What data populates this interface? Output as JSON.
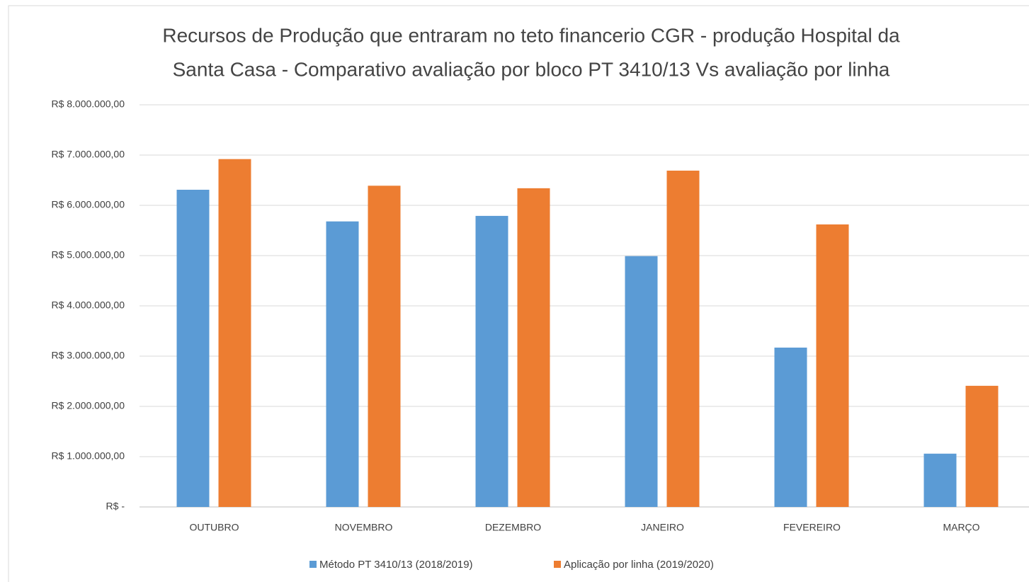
{
  "chart_data": {
    "type": "bar",
    "title": [
      "Recursos de Produção que entraram no teto financerio CGR - produção Hospital da",
      "Santa Casa - Comparativo avaliação por bloco PT 3410/13 Vs avaliação por linha"
    ],
    "categories": [
      "OUTUBRO",
      "NOVEMBRO",
      "DEZEMBRO",
      "JANEIRO",
      "FEVEREIRO",
      "MARÇO"
    ],
    "series": [
      {
        "name": "Método PT 3410/13 (2018/2019)",
        "color": "#5b9bd5",
        "values": [
          6310000,
          5680000,
          5790000,
          4990000,
          3170000,
          1060000
        ]
      },
      {
        "name": "Aplicação por linha (2019/2020)",
        "color": "#ed7d31",
        "values": [
          6920000,
          6390000,
          6340000,
          6690000,
          5620000,
          2410000
        ]
      }
    ],
    "ylim": [
      0,
      8000000
    ],
    "yticks": [
      {
        "value": 0,
        "label": "R$ -"
      },
      {
        "value": 1000000,
        "label": "R$ 1.000.000,00"
      },
      {
        "value": 2000000,
        "label": "R$ 2.000.000,00"
      },
      {
        "value": 3000000,
        "label": "R$ 3.000.000,00"
      },
      {
        "value": 4000000,
        "label": "R$ 4.000.000,00"
      },
      {
        "value": 5000000,
        "label": "R$ 5.000.000,00"
      },
      {
        "value": 6000000,
        "label": "R$ 6.000.000,00"
      },
      {
        "value": 7000000,
        "label": "R$ 7.000.000,00"
      },
      {
        "value": 8000000,
        "label": "R$ 8.000.000,00"
      }
    ],
    "grid": true,
    "legend": "bottom"
  }
}
